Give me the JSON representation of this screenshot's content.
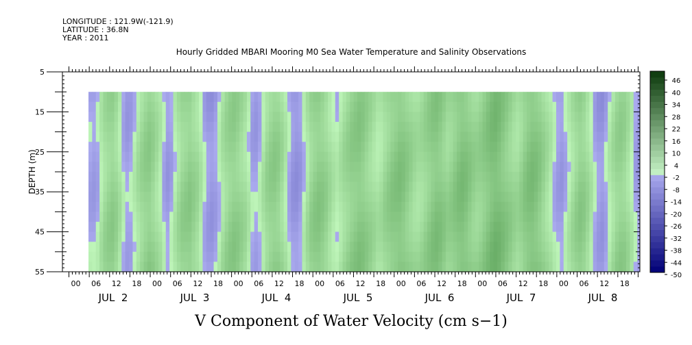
{
  "header": {
    "longitude": "LONGITUDE : 121.9W(-121.9)",
    "latitude": "LATITUDE : 36.8N",
    "year": "YEAR : 2011"
  },
  "chart_data": {
    "type": "heatmap",
    "title": "Hourly Gridded MBARI Mooring M0 Sea Water Temperature and Salinity Observations",
    "xlabel": "V Component of Water Velocity (cm s−1)",
    "ylabel": "DEPTH (m)",
    "ylim": [
      5,
      55
    ],
    "y_inverted": true,
    "y_ticks": [
      5,
      15,
      25,
      35,
      45,
      55
    ],
    "y_range_with_data": [
      10,
      55
    ],
    "x_hour_ticks": [
      "00",
      "06",
      "12",
      "18",
      "00",
      "06",
      "12",
      "18",
      "00",
      "06",
      "12",
      "18",
      "00",
      "06",
      "12",
      "18",
      "00",
      "06",
      "12",
      "18",
      "00",
      "06",
      "12",
      "18",
      "00",
      "06",
      "12",
      "18"
    ],
    "x_day_labels": [
      "JUL  2",
      "JUL  3",
      "JUL  4",
      "JUL  5",
      "JUL  6",
      "JUL  7",
      "JUL  8"
    ],
    "colorbar_labels": [
      "46",
      "40",
      "34",
      "28",
      "22",
      "16",
      "10",
      "4",
      "-2",
      "-8",
      "-14",
      "-20",
      "-26",
      "-32",
      "-38",
      "-44",
      "-50"
    ],
    "colorbar_levels": [
      -50,
      -47,
      -44,
      -41,
      -38,
      -35,
      -32,
      -29,
      -26,
      -23,
      -20,
      -17,
      -14,
      -11,
      -8,
      -5,
      -2,
      1,
      4,
      7,
      10,
      13,
      16,
      19,
      22,
      25,
      28,
      31,
      34,
      37,
      40,
      43,
      46,
      49
    ],
    "velocity_field_by_hour": [
      -4,
      -5,
      -3,
      2,
      6,
      8,
      9,
      7,
      3,
      -2,
      -5,
      -4,
      0,
      4,
      7,
      9,
      10,
      8,
      5,
      2,
      -3,
      -6,
      -4,
      1,
      5,
      8,
      9,
      10,
      8,
      6,
      2,
      -3,
      -6,
      -7,
      -5,
      -1,
      4,
      7,
      9,
      10,
      9,
      7,
      5,
      1,
      -4,
      -5,
      -2,
      3,
      7,
      9,
      10,
      9,
      6,
      2,
      -3,
      -7,
      -8,
      -6,
      -1,
      4,
      8,
      10,
      11,
      10,
      8,
      5,
      2,
      0,
      3,
      6,
      8,
      10,
      11,
      12,
      11,
      9,
      7,
      5,
      3,
      4,
      7,
      9,
      11,
      12,
      13,
      12,
      10,
      8,
      6,
      5,
      6,
      8,
      10,
      12,
      13,
      12,
      10,
      8,
      9,
      11,
      13,
      14,
      13,
      11,
      9,
      8,
      9,
      11,
      13,
      15,
      16,
      15,
      13,
      11,
      9,
      7,
      6,
      8,
      11,
      13,
      14,
      13,
      11,
      8,
      5,
      2,
      -2,
      -5,
      -6,
      -3,
      1,
      5,
      8,
      10,
      9,
      6,
      2,
      -3,
      -6,
      -7,
      -4,
      1,
      5,
      8,
      9,
      8,
      5,
      1,
      -4,
      -6,
      -4,
      0,
      4,
      7,
      8,
      6,
      3,
      -2,
      -5,
      -6
    ]
  }
}
